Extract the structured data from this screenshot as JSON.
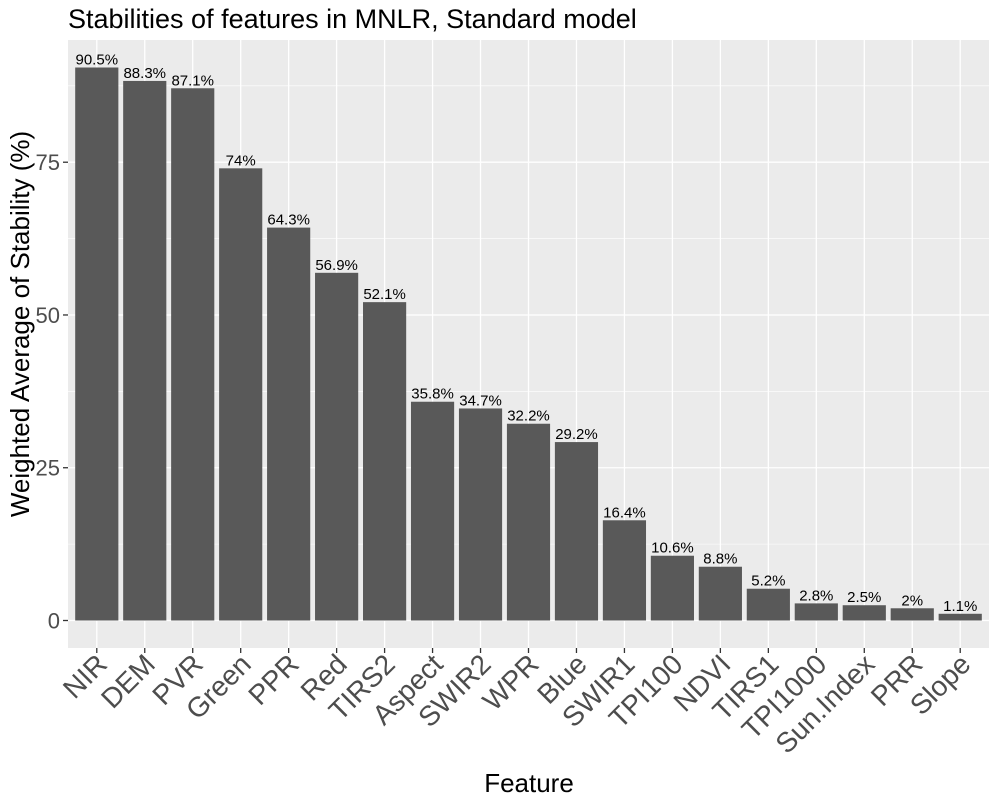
{
  "chart_data": {
    "type": "bar",
    "title": "Stabilities of features in MNLR, Standard model",
    "xlabel": "Feature",
    "ylabel": "Weighted Average of Stability (%)",
    "categories": [
      "NIR",
      "DEM",
      "PVR",
      "Green",
      "PPR",
      "Red",
      "TIRS2",
      "Aspect",
      "SWIR2",
      "WPR",
      "Blue",
      "SWIR1",
      "TPI100",
      "NDVI",
      "TIRS1",
      "TPI1000",
      "Sun.Index",
      "PRR",
      "Slope"
    ],
    "values": [
      90.5,
      88.3,
      87.1,
      74,
      64.3,
      56.9,
      52.1,
      35.8,
      34.7,
      32.2,
      29.2,
      16.4,
      10.6,
      8.8,
      5.2,
      2.8,
      2.5,
      2,
      1.1
    ],
    "data_labels": [
      "90.5%",
      "88.3%",
      "87.1%",
      "74%",
      "64.3%",
      "56.9%",
      "52.1%",
      "35.8%",
      "34.7%",
      "32.2%",
      "29.2%",
      "16.4%",
      "10.6%",
      "8.8%",
      "5.2%",
      "2.8%",
      "2.5%",
      "2%",
      "1.1%"
    ],
    "yticks": [
      0,
      25,
      50,
      75
    ],
    "ytick_labels": [
      "0",
      "25",
      "50",
      "75"
    ],
    "ylim": [
      -4.5,
      95.0
    ],
    "grid": true,
    "legend": "none",
    "colors": {
      "bar": "#595959",
      "panel": "#ebebeb",
      "grid_major": "#ffffff",
      "tick_text": "#4d4d4d"
    }
  }
}
